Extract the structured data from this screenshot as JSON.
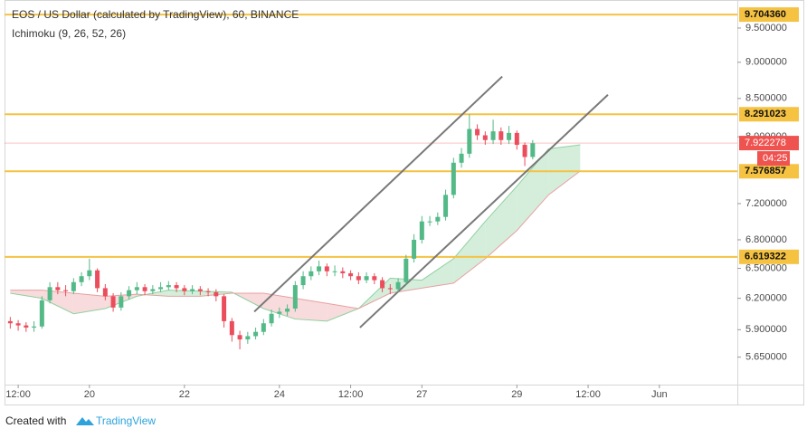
{
  "chart_data": {
    "type": "candlestick",
    "title": "EOS / US Dollar (calculated by TradingView), 60, BINANCE",
    "subtitle": "Ichimoku (9, 26, 52, 26)",
    "log_scale": true,
    "grid": false,
    "up_color": "#53b987",
    "down_color": "#eb4d5c",
    "level_color": "#f5c242",
    "cloud_up_color": "#c7e8cf",
    "cloud_down_color": "#f6cfd0",
    "trend_color": "#787878",
    "xlim": [
      5.1,
      375.4
    ],
    "ylim": [
      5.41,
      9.93
    ],
    "xticks": [
      {
        "value": 12,
        "label": "12:00"
      },
      {
        "value": 48,
        "label": "20"
      },
      {
        "value": 96,
        "label": "22"
      },
      {
        "value": 144,
        "label": "24"
      },
      {
        "value": 180,
        "label": "12:00"
      },
      {
        "value": 216,
        "label": "27"
      },
      {
        "value": 264,
        "label": "29"
      },
      {
        "value": 300,
        "label": "12:00"
      },
      {
        "value": 336,
        "label": "Jun"
      }
    ],
    "yticks": [
      {
        "value": 5.65,
        "label": "5.650000"
      },
      {
        "value": 5.9,
        "label": "5.900000"
      },
      {
        "value": 6.2,
        "label": "6.200000"
      },
      {
        "value": 6.5,
        "label": "6.500000"
      },
      {
        "value": 6.8,
        "label": "6.800000"
      },
      {
        "value": 7.2,
        "label": "7.200000"
      },
      {
        "value": 8.0,
        "label": "8.000000"
      },
      {
        "value": 8.5,
        "label": "8.500000"
      },
      {
        "value": 9.0,
        "label": "9.000000"
      },
      {
        "value": 9.5,
        "label": "9.500000"
      }
    ],
    "x": [
      8,
      12,
      16,
      20,
      24,
      28,
      32,
      36,
      40,
      44,
      48,
      52,
      56,
      60,
      64,
      68,
      72,
      76,
      80,
      84,
      88,
      92,
      96,
      100,
      104,
      108,
      112,
      116,
      120,
      124,
      128,
      132,
      136,
      140,
      144,
      148,
      152,
      156,
      160,
      164,
      168,
      172,
      176,
      180,
      184,
      188,
      192,
      196,
      200,
      204,
      208,
      212,
      216,
      220,
      224,
      228,
      232,
      236,
      240,
      244,
      248,
      252,
      256,
      260,
      264,
      268,
      272
    ],
    "open": [
      5.98,
      5.96,
      5.94,
      5.92,
      5.93,
      6.18,
      6.31,
      6.28,
      6.27,
      6.36,
      6.42,
      6.48,
      6.3,
      6.22,
      6.11,
      6.22,
      6.28,
      6.31,
      6.27,
      6.29,
      6.31,
      6.33,
      6.3,
      6.27,
      6.29,
      6.27,
      6.26,
      6.22,
      5.98,
      5.85,
      5.81,
      5.84,
      5.88,
      5.96,
      6.05,
      6.07,
      6.1,
      6.33,
      6.42,
      6.47,
      6.52,
      6.47,
      6.47,
      6.45,
      6.42,
      6.38,
      6.42,
      6.38,
      6.3,
      6.29,
      6.36,
      6.6,
      6.8,
      7.0,
      7.0,
      7.05,
      7.3,
      7.68,
      7.79,
      8.1,
      8.02,
      7.96,
      8.07,
      7.96,
      8.05,
      7.9,
      7.75
    ],
    "high": [
      6.02,
      5.99,
      5.97,
      5.98,
      6.22,
      6.36,
      6.36,
      6.33,
      6.4,
      6.46,
      6.6,
      6.5,
      6.34,
      6.25,
      6.26,
      6.32,
      6.36,
      6.34,
      6.33,
      6.36,
      6.37,
      6.36,
      6.33,
      6.33,
      6.32,
      6.3,
      6.29,
      6.24,
      6.01,
      5.89,
      5.88,
      5.92,
      6.0,
      6.09,
      6.11,
      6.14,
      6.37,
      6.47,
      6.52,
      6.58,
      6.55,
      6.53,
      6.51,
      6.48,
      6.46,
      6.46,
      6.45,
      6.41,
      6.34,
      6.4,
      6.64,
      6.86,
      7.06,
      7.06,
      7.1,
      7.36,
      7.74,
      7.86,
      8.29,
      8.16,
      8.07,
      8.22,
      8.12,
      8.14,
      8.08,
      7.93,
      7.96
    ],
    "low": [
      5.91,
      5.89,
      5.88,
      5.88,
      5.91,
      6.15,
      6.24,
      6.22,
      6.24,
      6.32,
      6.38,
      6.26,
      6.18,
      6.07,
      6.08,
      6.19,
      6.24,
      6.23,
      6.24,
      6.26,
      6.28,
      6.26,
      6.23,
      6.24,
      6.23,
      6.22,
      6.17,
      5.92,
      5.79,
      5.72,
      5.77,
      5.81,
      5.85,
      5.93,
      6.01,
      6.03,
      6.07,
      6.29,
      6.38,
      6.43,
      6.42,
      6.42,
      6.4,
      6.38,
      6.34,
      6.35,
      6.34,
      6.26,
      6.24,
      6.26,
      6.33,
      6.56,
      6.76,
      6.95,
      6.96,
      7.01,
      7.26,
      7.62,
      7.74,
      7.96,
      7.9,
      7.91,
      7.9,
      7.91,
      7.84,
      7.64,
      7.72
    ],
    "close": [
      5.96,
      5.94,
      5.92,
      5.93,
      6.18,
      6.31,
      6.28,
      6.27,
      6.36,
      6.42,
      6.48,
      6.3,
      6.22,
      6.11,
      6.22,
      6.28,
      6.31,
      6.27,
      6.29,
      6.31,
      6.33,
      6.3,
      6.27,
      6.29,
      6.27,
      6.26,
      6.22,
      5.98,
      5.85,
      5.81,
      5.84,
      5.88,
      5.96,
      6.05,
      6.07,
      6.1,
      6.33,
      6.42,
      6.47,
      6.52,
      6.47,
      6.47,
      6.45,
      6.42,
      6.38,
      6.42,
      6.38,
      6.3,
      6.29,
      6.36,
      6.6,
      6.8,
      7.0,
      7.0,
      7.05,
      7.3,
      7.68,
      7.79,
      8.1,
      8.02,
      7.96,
      8.07,
      7.96,
      8.05,
      7.9,
      7.75,
      7.92
    ],
    "cloud": {
      "x": [
        8,
        24,
        40,
        56,
        72,
        88,
        104,
        120,
        136,
        152,
        168,
        184,
        200,
        216,
        232,
        248,
        264,
        280,
        296
      ],
      "span_a": [
        6.25,
        6.2,
        6.05,
        6.1,
        6.22,
        6.28,
        6.27,
        6.26,
        6.1,
        6.0,
        5.98,
        6.1,
        6.4,
        6.38,
        6.6,
        7.0,
        7.4,
        7.85,
        7.9
      ],
      "span_b": [
        6.28,
        6.28,
        6.25,
        6.22,
        6.24,
        6.22,
        6.22,
        6.25,
        6.25,
        6.2,
        6.15,
        6.1,
        6.25,
        6.3,
        6.35,
        6.6,
        6.9,
        7.3,
        7.58
      ]
    },
    "trend_lines": [
      {
        "x": [
          131.3,
          256.6
        ],
        "y": [
          6.07,
          8.8
        ]
      },
      {
        "x": [
          184.7,
          310
        ],
        "y": [
          5.92,
          8.55
        ]
      }
    ],
    "levels": [
      {
        "value": 9.70436,
        "label": "9.704360"
      },
      {
        "value": 8.291023,
        "label": "8.291023"
      },
      {
        "value": 7.576857,
        "label": "7.576857"
      },
      {
        "value": 6.619322,
        "label": "6.619322"
      }
    ],
    "last_price": {
      "value": 7.922278,
      "label": "7.922278",
      "countdown": "04:25",
      "color": "#ef5350"
    },
    "footer": {
      "prefix": "Created with",
      "brand": "TradingView"
    }
  }
}
